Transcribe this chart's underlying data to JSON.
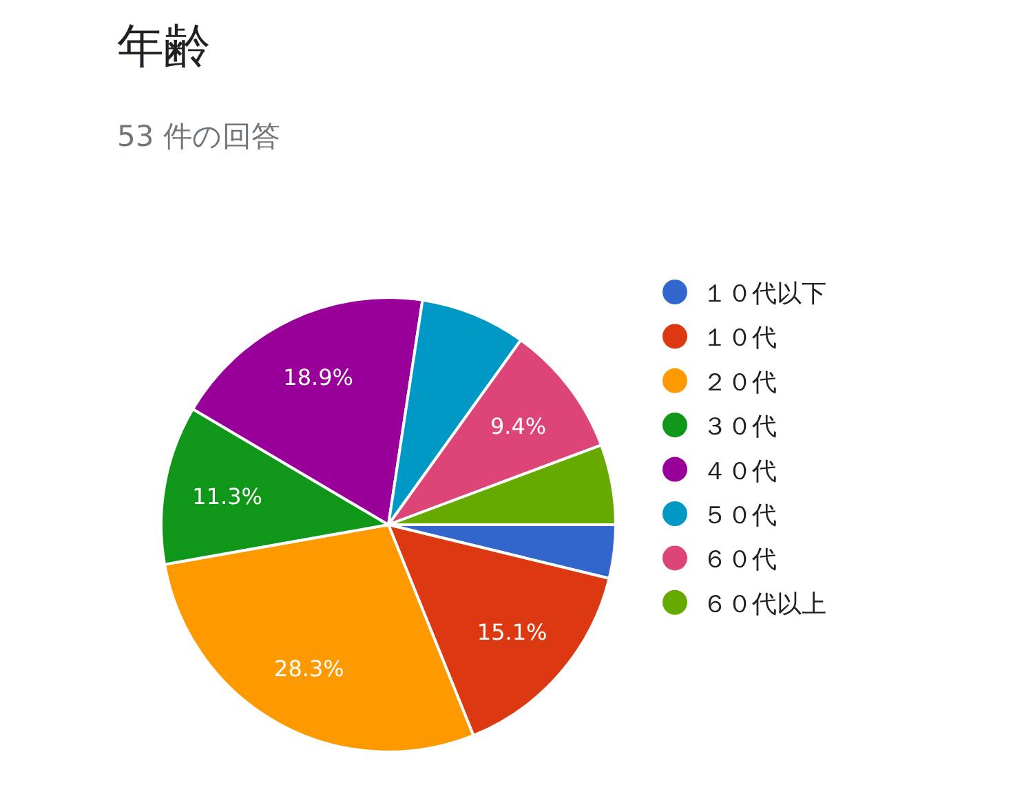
{
  "chart_data": {
    "type": "pie",
    "title": "年齢",
    "subtitle": "53 件の回答",
    "categories": [
      "１０代以下",
      "１０代",
      "２０代",
      "３０代",
      "４０代",
      "５０代",
      "６０代",
      "６０代以上"
    ],
    "values": [
      3.8,
      15.1,
      28.3,
      11.3,
      18.9,
      7.5,
      9.4,
      5.7
    ],
    "colors": [
      "#3366cc",
      "#dc3912",
      "#ff9900",
      "#109618",
      "#990099",
      "#0099c6",
      "#dd4477",
      "#66aa00"
    ],
    "value_labels": [
      null,
      "15.1%",
      "28.3%",
      "11.3%",
      "18.9%",
      null,
      "9.4%",
      null
    ],
    "legend": "right"
  }
}
